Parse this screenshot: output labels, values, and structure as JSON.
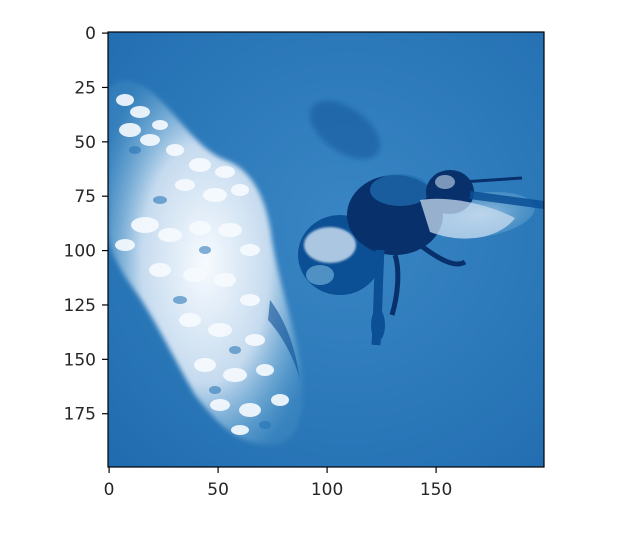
{
  "image": {
    "subject": "bee-in-flight-near-flower",
    "colormap": "Blues",
    "colors": {
      "deep": "#08306b",
      "dark": "#0b4f95",
      "mid": "#2171b5",
      "base": "#2a77b8",
      "light": "#6baed6",
      "pale": "#c6dbef",
      "white": "#f7fbff"
    }
  },
  "axes": {
    "x": {
      "range": [
        0,
        199
      ],
      "ticks": [
        {
          "value": 0,
          "label": "0"
        },
        {
          "value": 50,
          "label": "50"
        },
        {
          "value": 100,
          "label": "100"
        },
        {
          "value": 150,
          "label": "150"
        }
      ]
    },
    "y": {
      "range": [
        0,
        199
      ],
      "inverted": true,
      "ticks": [
        {
          "value": 0,
          "label": "0"
        },
        {
          "value": 25,
          "label": "25"
        },
        {
          "value": 50,
          "label": "50"
        },
        {
          "value": 75,
          "label": "75"
        },
        {
          "value": 100,
          "label": "100"
        },
        {
          "value": 125,
          "label": "125"
        },
        {
          "value": 150,
          "label": "150"
        },
        {
          "value": 175,
          "label": "175"
        }
      ]
    }
  }
}
